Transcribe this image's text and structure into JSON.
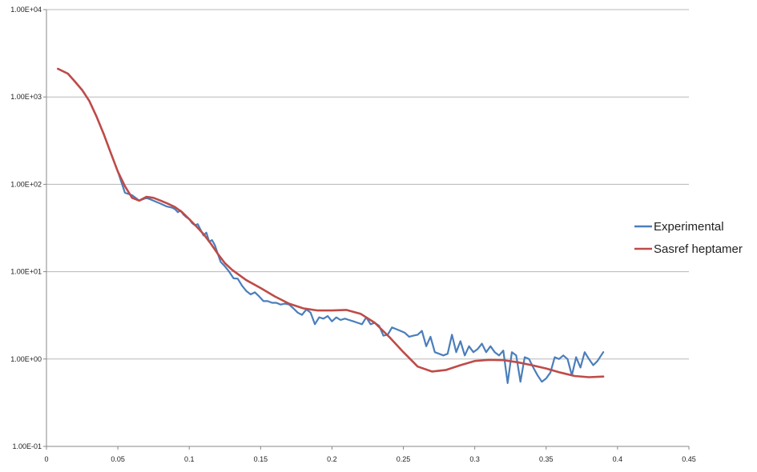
{
  "chart_data": {
    "type": "line",
    "title": "",
    "xlabel": "",
    "ylabel": "",
    "xlim": [
      0,
      0.45
    ],
    "ylim": [
      0.1,
      10000
    ],
    "y_scale": "log",
    "grid": "horizontal",
    "legend_position": "right",
    "x_ticks": [
      "0",
      "0.05",
      "0.1",
      "0.15",
      "0.2",
      "0.25",
      "0.3",
      "0.35",
      "0.4",
      "0.45"
    ],
    "y_ticks": [
      "1.00E-01",
      "1.00E+00",
      "1.00E+01",
      "1.00E+02",
      "1.00E+03",
      "1.00E+04"
    ],
    "series": [
      {
        "name": "Experimental",
        "color": "#4a7ebb",
        "x": [
          0.008,
          0.015,
          0.02,
          0.025,
          0.03,
          0.035,
          0.04,
          0.045,
          0.05,
          0.055,
          0.06,
          0.065,
          0.07,
          0.072,
          0.074,
          0.076,
          0.078,
          0.08,
          0.082,
          0.084,
          0.086,
          0.088,
          0.09,
          0.092,
          0.094,
          0.096,
          0.098,
          0.1,
          0.102,
          0.104,
          0.106,
          0.108,
          0.11,
          0.112,
          0.114,
          0.116,
          0.118,
          0.12,
          0.122,
          0.125,
          0.128,
          0.131,
          0.134,
          0.137,
          0.14,
          0.143,
          0.146,
          0.149,
          0.152,
          0.155,
          0.158,
          0.161,
          0.164,
          0.167,
          0.17,
          0.173,
          0.176,
          0.179,
          0.182,
          0.185,
          0.188,
          0.191,
          0.194,
          0.197,
          0.2,
          0.203,
          0.206,
          0.209,
          0.212,
          0.215,
          0.218,
          0.221,
          0.224,
          0.227,
          0.23,
          0.233,
          0.236,
          0.239,
          0.242,
          0.245,
          0.248,
          0.251,
          0.254,
          0.257,
          0.26,
          0.263,
          0.266,
          0.269,
          0.272,
          0.275,
          0.278,
          0.281,
          0.284,
          0.287,
          0.29,
          0.293,
          0.296,
          0.299,
          0.302,
          0.305,
          0.308,
          0.311,
          0.314,
          0.317,
          0.32,
          0.323,
          0.326,
          0.329,
          0.332,
          0.335,
          0.338,
          0.341,
          0.344,
          0.347,
          0.35,
          0.353,
          0.356,
          0.359,
          0.362,
          0.365,
          0.368,
          0.371,
          0.374,
          0.377,
          0.38,
          0.383,
          0.386,
          0.39
        ],
        "values": [
          2100,
          1850,
          1500,
          1200,
          900,
          600,
          380,
          230,
          140,
          80,
          75,
          65,
          70,
          68,
          66,
          64,
          62,
          60,
          58,
          56,
          55,
          54,
          52,
          48,
          50,
          45,
          42,
          40,
          36,
          34,
          35,
          30,
          26,
          28,
          22,
          23,
          20,
          16,
          13,
          11.5,
          10,
          8.4,
          8.3,
          6.9,
          6,
          5.5,
          5.8,
          5.2,
          4.6,
          4.6,
          4.4,
          4.4,
          4.2,
          4.3,
          4.2,
          3.8,
          3.4,
          3.2,
          3.7,
          3.4,
          2.5,
          3.0,
          2.9,
          3.1,
          2.7,
          3.0,
          2.8,
          2.9,
          2.8,
          2.7,
          2.6,
          2.5,
          3.0,
          2.5,
          2.6,
          2.4,
          1.85,
          1.9,
          2.3,
          2.2,
          2.1,
          2.0,
          1.8,
          1.85,
          1.9,
          2.1,
          1.4,
          1.8,
          1.2,
          1.15,
          1.1,
          1.15,
          1.9,
          1.2,
          1.6,
          1.1,
          1.4,
          1.2,
          1.3,
          1.5,
          1.2,
          1.4,
          1.2,
          1.1,
          1.25,
          0.53,
          1.2,
          1.1,
          0.55,
          1.05,
          1.0,
          0.8,
          0.65,
          0.55,
          0.6,
          0.7,
          1.05,
          1.0,
          1.1,
          1.0,
          0.65,
          1.05,
          0.8,
          1.2,
          1.0,
          0.85,
          0.95,
          1.2
        ]
      },
      {
        "name": "Sasref heptamer",
        "color": "#be4b48",
        "x": [
          0.008,
          0.015,
          0.02,
          0.025,
          0.03,
          0.035,
          0.04,
          0.045,
          0.05,
          0.055,
          0.06,
          0.065,
          0.07,
          0.075,
          0.08,
          0.085,
          0.09,
          0.095,
          0.1,
          0.105,
          0.11,
          0.115,
          0.12,
          0.125,
          0.13,
          0.14,
          0.15,
          0.16,
          0.17,
          0.18,
          0.19,
          0.2,
          0.21,
          0.22,
          0.23,
          0.24,
          0.25,
          0.26,
          0.27,
          0.28,
          0.29,
          0.3,
          0.31,
          0.32,
          0.33,
          0.34,
          0.35,
          0.36,
          0.37,
          0.38,
          0.39
        ],
        "values": [
          2100,
          1850,
          1500,
          1200,
          900,
          600,
          380,
          230,
          140,
          95,
          70,
          65,
          72,
          70,
          65,
          60,
          55,
          48,
          40,
          33,
          27,
          21,
          16,
          12.5,
          10.5,
          8,
          6.5,
          5.2,
          4.3,
          3.8,
          3.6,
          3.6,
          3.65,
          3.3,
          2.6,
          1.8,
          1.2,
          0.82,
          0.72,
          0.75,
          0.85,
          0.95,
          0.98,
          0.97,
          0.92,
          0.85,
          0.78,
          0.7,
          0.64,
          0.62,
          0.63
        ]
      }
    ]
  }
}
